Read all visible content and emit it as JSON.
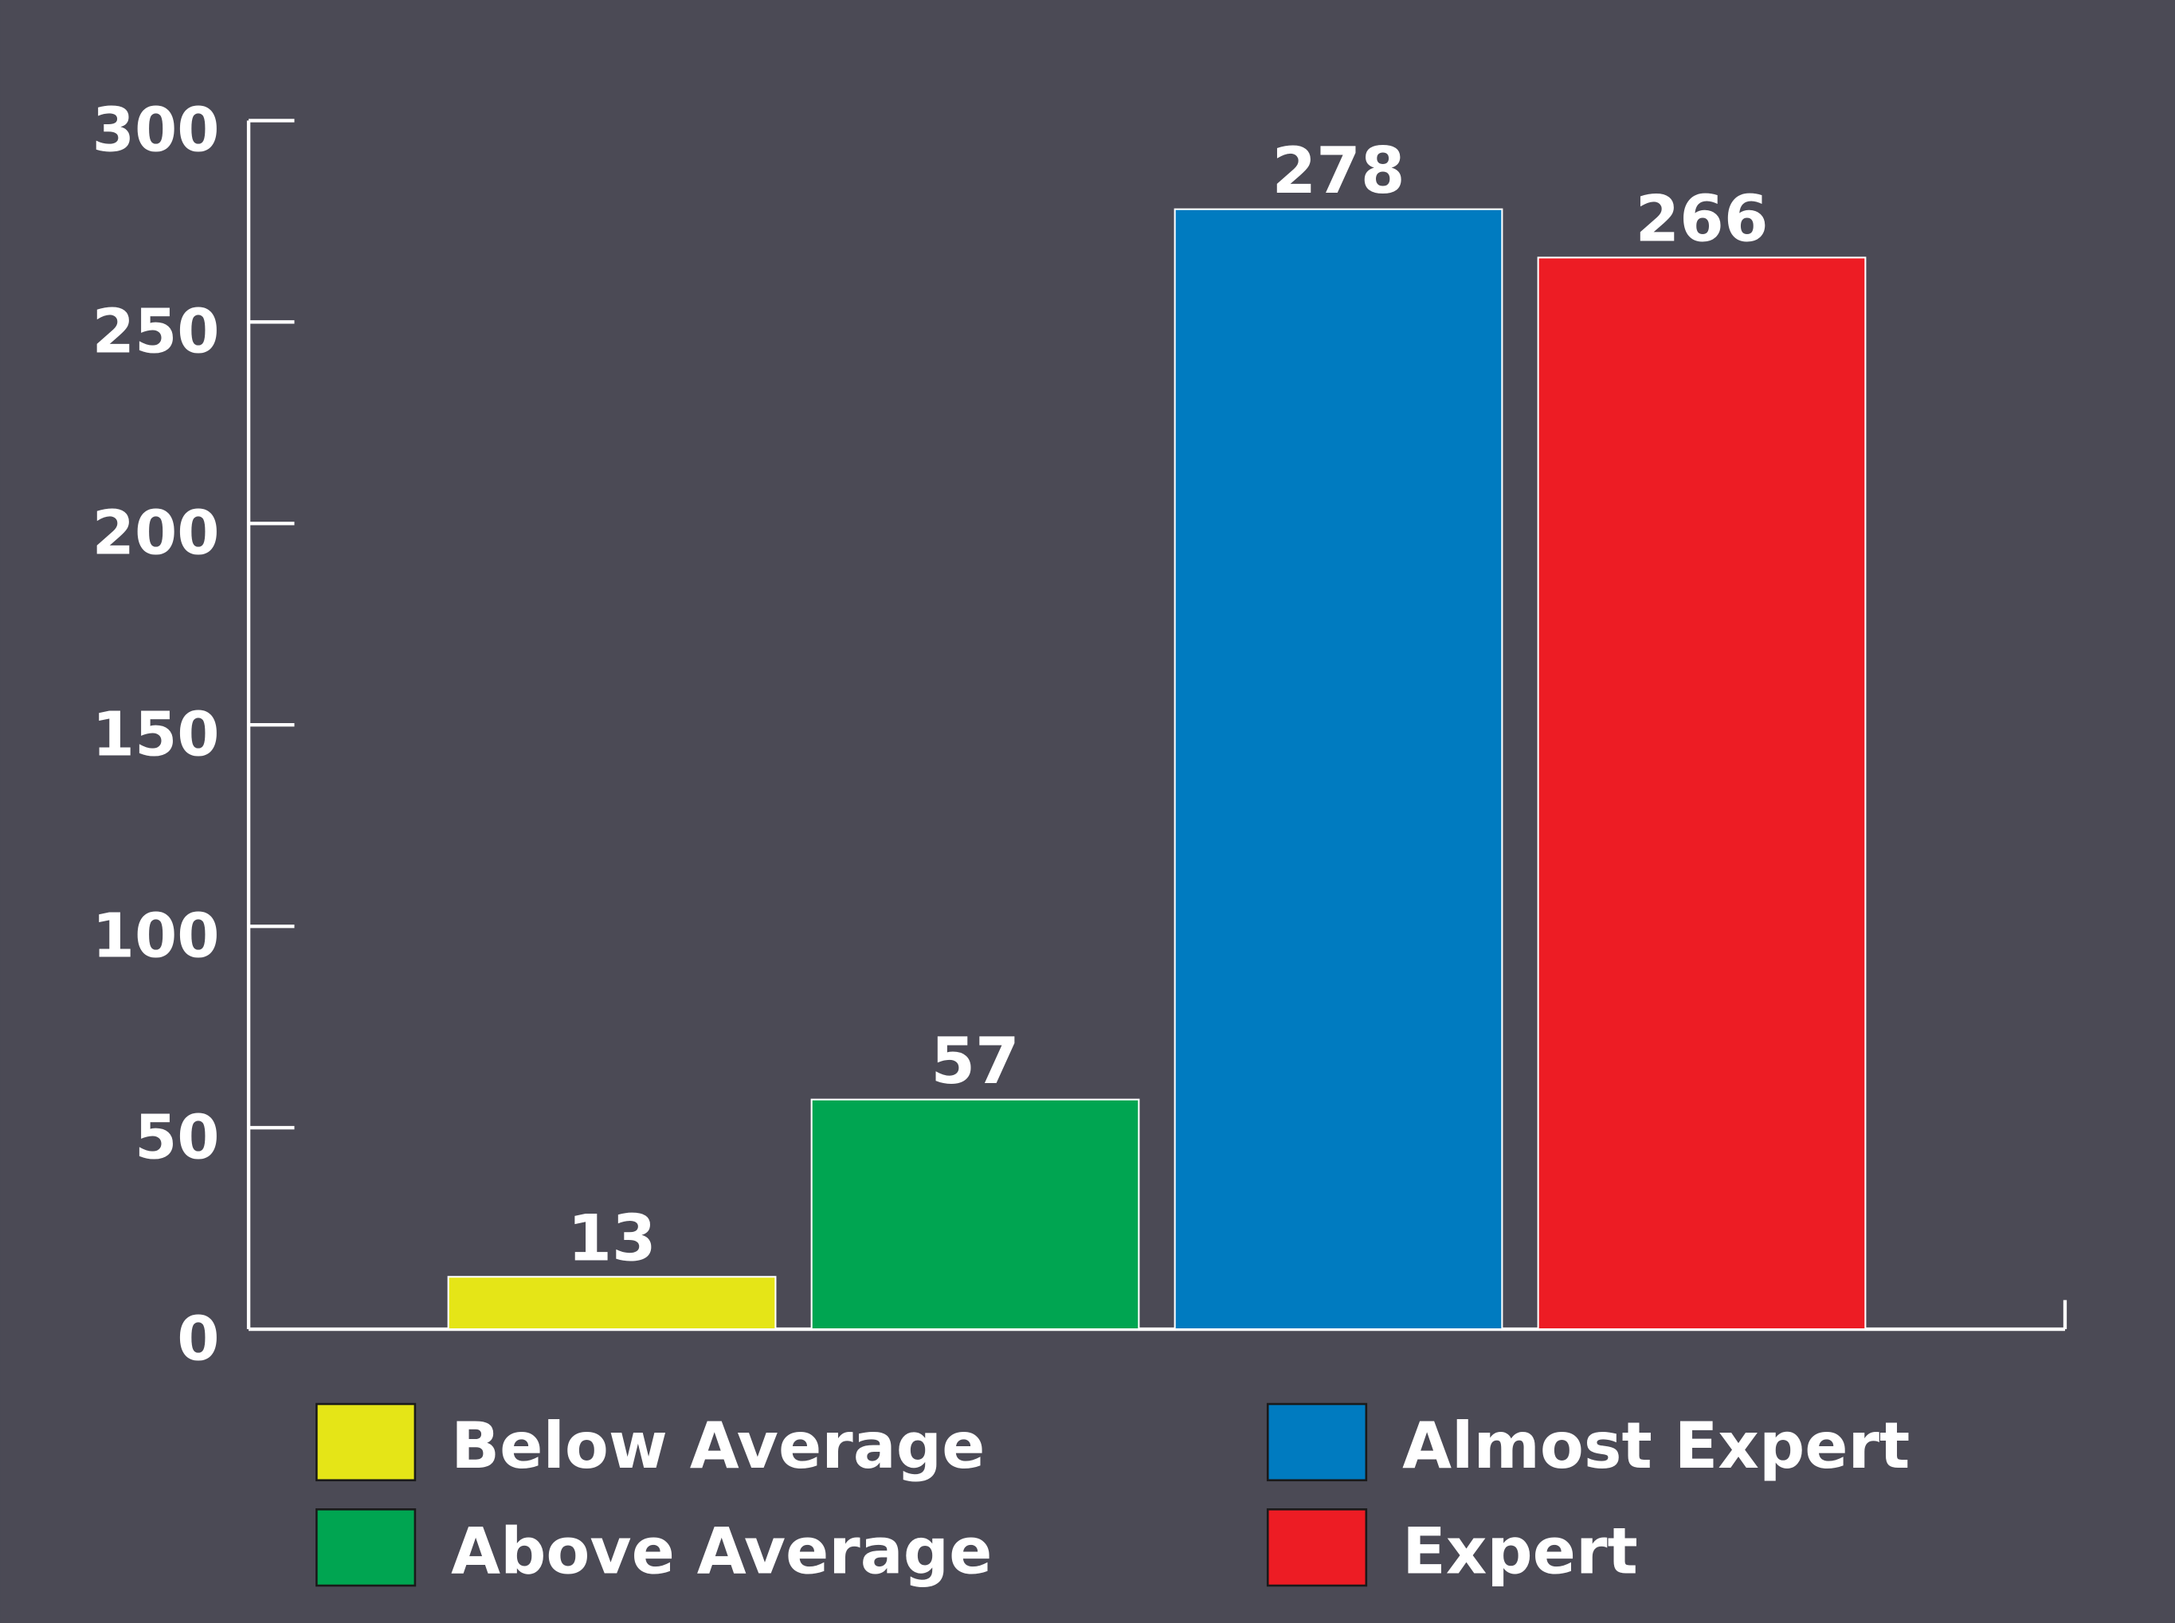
{
  "chart_data": {
    "type": "bar",
    "title": "",
    "xlabel": "",
    "ylabel": "",
    "categories": [
      "Below Average",
      "Above Average",
      "Almost Expert",
      "Expert"
    ],
    "values": [
      13,
      57,
      278,
      266
    ],
    "colors": [
      "#e5e517",
      "#00a551",
      "#007bc0",
      "#ed1c24"
    ],
    "ylim": [
      0,
      300
    ],
    "yticks": [
      "0",
      "50",
      "100",
      "150",
      "200",
      "250",
      "300"
    ],
    "data_labels": [
      "13",
      "57",
      "278",
      "266"
    ],
    "grid": false,
    "legend_position": "bottom",
    "background": "#4b4a55"
  }
}
